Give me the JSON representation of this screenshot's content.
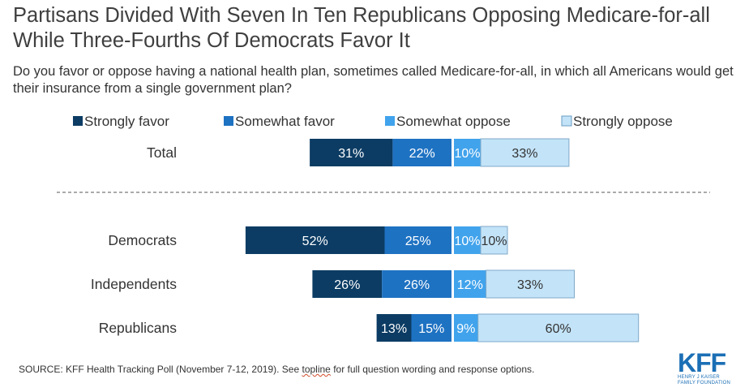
{
  "title": "Partisans Divided With Seven In Ten Republicans Opposing Medicare-for-all While Three-Fourths Of Democrats Favor It",
  "subtitle": "Do you favor or oppose having a national health plan, sometimes called Medicare-for-all, in which all Americans would get their insurance from a single government plan?",
  "source": {
    "prefix": "SOURCE: KFF Health Tracking Poll (November 7-12, 2019). See ",
    "link": "topline",
    "suffix": " for full question wording and response options."
  },
  "logo": {
    "main": "KFF",
    "sub_line1": "HENRY J KAISER",
    "sub_line2": "FAMILY FOUNDATION"
  },
  "chart_data": {
    "type": "bar",
    "orientation": "horizontal-diverging-stacked",
    "categories": [
      "Total",
      "Democrats",
      "Independents",
      "Republicans"
    ],
    "series": [
      {
        "name": "Strongly favor",
        "side": "favor",
        "color": "#0c3c64",
        "values": [
          31,
          52,
          26,
          13
        ],
        "labels": [
          "31%",
          "52%",
          "26%",
          "13%"
        ]
      },
      {
        "name": "Somewhat favor",
        "side": "favor",
        "color": "#1e72c2",
        "values": [
          22,
          25,
          26,
          15
        ],
        "labels": [
          "22%",
          "25%",
          "26%",
          "15%"
        ]
      },
      {
        "name": "Somewhat oppose",
        "side": "oppose",
        "color": "#41a3ec",
        "values": [
          10,
          10,
          12,
          9
        ],
        "labels": [
          "10%",
          "10%",
          "12%",
          "9%"
        ]
      },
      {
        "name": "Strongly oppose",
        "side": "oppose",
        "color": "#c3e3f8",
        "values": [
          33,
          10,
          33,
          60
        ],
        "labels": [
          "33%",
          "10%",
          "33%",
          "60%"
        ]
      }
    ],
    "label_colors": [
      "#ffffff",
      "#ffffff",
      "#ffffff",
      "#333333"
    ],
    "legend_position": "top",
    "divider_after_category": "Total",
    "grid": false
  }
}
